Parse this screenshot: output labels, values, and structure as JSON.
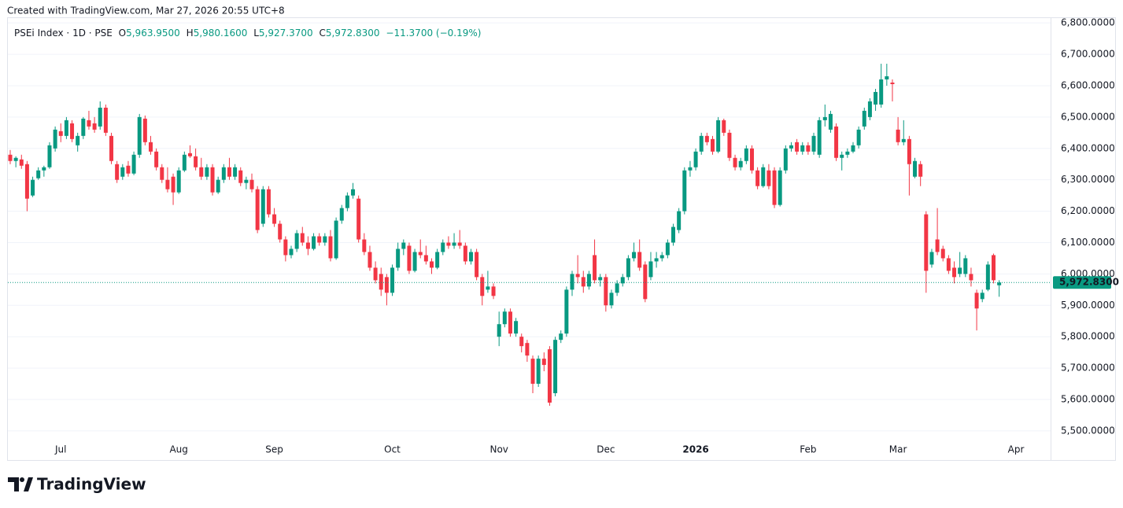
{
  "created": "Created with TradingView.com, Mar 27, 2026 20:55 UTC+8",
  "logo_text": "TradingView",
  "legend": {
    "symbol": "PSEi Index · 1D · PSE",
    "open_label": "O",
    "open": "5,963.9500",
    "high_label": "H",
    "high": "5,980.1600",
    "low_label": "L",
    "low": "5,927.3700",
    "close_label": "C",
    "close": "5,972.8300",
    "change": "−11.3700 (−0.19%)"
  },
  "chart_data": {
    "type": "candlestick",
    "up_color": "#089981",
    "down_color": "#f23645",
    "ylim": [
      5407,
      6818
    ],
    "yticks": [
      {
        "value": 5500,
        "label": "5,500.0000"
      },
      {
        "value": 5600,
        "label": "5,600.0000"
      },
      {
        "value": 5700,
        "label": "5,700.0000"
      },
      {
        "value": 5800,
        "label": "5,800.0000"
      },
      {
        "value": 5900,
        "label": "5,900.0000"
      },
      {
        "value": 6000,
        "label": "6,000.0000"
      },
      {
        "value": 6100,
        "label": "6,100.0000"
      },
      {
        "value": 6200,
        "label": "6,200.0000"
      },
      {
        "value": 6300,
        "label": "6,300.0000"
      },
      {
        "value": 6400,
        "label": "6,400.0000"
      },
      {
        "value": 6500,
        "label": "6,500.0000"
      },
      {
        "value": 6600,
        "label": "6,600.0000"
      },
      {
        "value": 6700,
        "label": "6,700.0000"
      },
      {
        "value": 6800,
        "label": "6,800.0000"
      }
    ],
    "grid": true,
    "last_price": {
      "value": 5972.83,
      "label": "5,972.8300"
    },
    "categories": [
      null,
      null,
      null,
      null,
      null,
      null,
      null,
      null,
      null,
      "Jul",
      null,
      null,
      null,
      null,
      null,
      null,
      null,
      null,
      null,
      null,
      null,
      null,
      null,
      null,
      null,
      null,
      null,
      null,
      null,
      null,
      "Aug",
      null,
      null,
      null,
      null,
      null,
      null,
      null,
      null,
      null,
      null,
      null,
      null,
      null,
      null,
      null,
      null,
      "Sep",
      null,
      null,
      null,
      null,
      null,
      null,
      null,
      null,
      null,
      null,
      null,
      null,
      null,
      null,
      null,
      null,
      null,
      null,
      null,
      null,
      "Oct",
      null,
      null,
      null,
      null,
      null,
      null,
      null,
      null,
      null,
      null,
      null,
      null,
      null,
      null,
      null,
      null,
      null,
      null,
      "Nov",
      null,
      null,
      null,
      null,
      null,
      null,
      null,
      null,
      null,
      null,
      null,
      null,
      null,
      null,
      null,
      null,
      null,
      null,
      "Dec",
      null,
      null,
      null,
      null,
      null,
      null,
      null,
      null,
      null,
      null,
      null,
      null,
      null,
      null,
      null,
      "2026",
      null,
      null,
      null,
      null,
      null,
      null,
      null,
      null,
      null,
      null,
      null,
      null,
      null,
      null,
      null,
      null,
      null,
      null,
      null,
      "Feb",
      null,
      null,
      null,
      null,
      null,
      null,
      null,
      null,
      null,
      null,
      null,
      null,
      null,
      null,
      null,
      "Mar",
      null,
      null,
      null,
      null,
      null,
      null,
      null,
      null,
      null,
      null,
      null,
      null,
      null,
      null,
      null,
      null,
      null,
      null,
      null,
      null,
      "Apr",
      null,
      null,
      null,
      null,
      null,
      null
    ],
    "ohlc": [
      [
        6380,
        6395,
        6350,
        6360
      ],
      [
        6360,
        6375,
        6340,
        6370
      ],
      [
        6365,
        6380,
        6335,
        6345
      ],
      [
        6350,
        6360,
        6200,
        6240
      ],
      [
        6250,
        6310,
        6245,
        6300
      ],
      [
        6305,
        6340,
        6300,
        6330
      ],
      [
        6330,
        6345,
        6310,
        6340
      ],
      [
        6340,
        6420,
        6335,
        6410
      ],
      [
        6400,
        6470,
        6390,
        6460
      ],
      [
        6455,
        6480,
        6420,
        6440
      ],
      [
        6440,
        6500,
        6430,
        6490
      ],
      [
        6480,
        6490,
        6420,
        6430
      ],
      [
        6410,
        6450,
        6390,
        6440
      ],
      [
        6440,
        6500,
        6430,
        6495
      ],
      [
        6490,
        6520,
        6460,
        6470
      ],
      [
        6480,
        6500,
        6450,
        6460
      ],
      [
        6470,
        6550,
        6460,
        6530
      ],
      [
        6530,
        6540,
        6440,
        6450
      ],
      [
        6440,
        6450,
        6350,
        6360
      ],
      [
        6350,
        6360,
        6290,
        6300
      ],
      [
        6310,
        6350,
        6300,
        6340
      ],
      [
        6345,
        6360,
        6310,
        6320
      ],
      [
        6320,
        6390,
        6315,
        6380
      ],
      [
        6380,
        6510,
        6370,
        6500
      ],
      [
        6495,
        6505,
        6410,
        6420
      ],
      [
        6420,
        6440,
        6380,
        6390
      ],
      [
        6390,
        6400,
        6330,
        6340
      ],
      [
        6340,
        6350,
        6290,
        6300
      ],
      [
        6300,
        6340,
        6260,
        6270
      ],
      [
        6310,
        6320,
        6220,
        6260
      ],
      [
        6260,
        6340,
        6255,
        6330
      ],
      [
        6330,
        6390,
        6325,
        6380
      ],
      [
        6385,
        6410,
        6370,
        6375
      ],
      [
        6375,
        6400,
        6330,
        6340
      ],
      [
        6340,
        6370,
        6300,
        6310
      ],
      [
        6310,
        6350,
        6300,
        6340
      ],
      [
        6340,
        6350,
        6250,
        6260
      ],
      [
        6260,
        6310,
        6255,
        6300
      ],
      [
        6300,
        6350,
        6290,
        6340
      ],
      [
        6340,
        6370,
        6300,
        6310
      ],
      [
        6310,
        6350,
        6300,
        6340
      ],
      [
        6330,
        6340,
        6280,
        6290
      ],
      [
        6290,
        6310,
        6270,
        6300
      ],
      [
        6300,
        6320,
        6260,
        6270
      ],
      [
        6270,
        6280,
        6130,
        6140
      ],
      [
        6160,
        6280,
        6150,
        6270
      ],
      [
        6270,
        6280,
        6180,
        6190
      ],
      [
        6190,
        6210,
        6150,
        6160
      ],
      [
        6160,
        6170,
        6100,
        6110
      ],
      [
        6110,
        6120,
        6040,
        6060
      ],
      [
        6060,
        6090,
        6050,
        6080
      ],
      [
        6080,
        6140,
        6070,
        6130
      ],
      [
        6130,
        6150,
        6090,
        6100
      ],
      [
        6100,
        6120,
        6060,
        6080
      ],
      [
        6080,
        6130,
        6075,
        6120
      ],
      [
        6120,
        6130,
        6090,
        6100
      ],
      [
        6100,
        6130,
        6090,
        6120
      ],
      [
        6120,
        6140,
        6040,
        6050
      ],
      [
        6050,
        6180,
        6045,
        6170
      ],
      [
        6170,
        6220,
        6160,
        6210
      ],
      [
        6210,
        6260,
        6200,
        6250
      ],
      [
        6250,
        6290,
        6240,
        6270
      ],
      [
        6240,
        6250,
        6100,
        6110
      ],
      [
        6110,
        6130,
        6060,
        6070
      ],
      [
        6070,
        6090,
        6010,
        6020
      ],
      [
        6020,
        6040,
        5970,
        5980
      ],
      [
        6000,
        6020,
        5930,
        5950
      ],
      [
        5990,
        6000,
        5900,
        5940
      ],
      [
        5940,
        6030,
        5930,
        6020
      ],
      [
        6020,
        6100,
        6010,
        6080
      ],
      [
        6080,
        6110,
        6060,
        6100
      ],
      [
        6090,
        6100,
        6000,
        6010
      ],
      [
        6010,
        6080,
        6005,
        6070
      ],
      [
        6070,
        6110,
        6050,
        6060
      ],
      [
        6060,
        6090,
        6030,
        6040
      ],
      [
        6040,
        6050,
        6000,
        6020
      ],
      [
        6020,
        6080,
        6015,
        6070
      ],
      [
        6070,
        6110,
        6060,
        6100
      ],
      [
        6100,
        6120,
        6080,
        6090
      ],
      [
        6090,
        6130,
        6080,
        6100
      ],
      [
        6100,
        6140,
        6080,
        6090
      ],
      [
        6090,
        6100,
        6030,
        6040
      ],
      [
        6040,
        6080,
        6030,
        6070
      ],
      [
        6070,
        6080,
        5980,
        5990
      ],
      [
        5990,
        6000,
        5900,
        5930
      ],
      [
        5950,
        6010,
        5940,
        5960
      ],
      [
        5960,
        5970,
        5920,
        5930
      ],
      [
        5800,
        5880,
        5770,
        5840
      ],
      [
        5840,
        5890,
        5830,
        5880
      ],
      [
        5880,
        5890,
        5800,
        5810
      ],
      [
        5810,
        5860,
        5800,
        5850
      ],
      [
        5800,
        5810,
        5750,
        5770
      ],
      [
        5780,
        5790,
        5720,
        5740
      ],
      [
        5730,
        5740,
        5620,
        5650
      ],
      [
        5650,
        5740,
        5640,
        5730
      ],
      [
        5730,
        5750,
        5690,
        5710
      ],
      [
        5760,
        5770,
        5580,
        5590
      ],
      [
        5620,
        5800,
        5610,
        5790
      ],
      [
        5790,
        5820,
        5780,
        5810
      ],
      [
        5810,
        5960,
        5800,
        5950
      ],
      [
        5950,
        6010,
        5930,
        6000
      ],
      [
        6000,
        6060,
        5970,
        5990
      ],
      [
        5990,
        6010,
        5940,
        5960
      ],
      [
        5960,
        6010,
        5950,
        6000
      ],
      [
        6060,
        6110,
        5970,
        5980
      ],
      [
        5980,
        6000,
        5960,
        5990
      ],
      [
        5990,
        6000,
        5880,
        5900
      ],
      [
        5900,
        5950,
        5890,
        5940
      ],
      [
        5940,
        5980,
        5930,
        5970
      ],
      [
        5970,
        6000,
        5960,
        5990
      ],
      [
        5990,
        6060,
        5980,
        6050
      ],
      [
        6050,
        6100,
        6040,
        6070
      ],
      [
        6070,
        6110,
        6010,
        6020
      ],
      [
        6030,
        6040,
        5910,
        5920
      ],
      [
        5990,
        6070,
        5980,
        6040
      ],
      [
        6040,
        6070,
        6020,
        6050
      ],
      [
        6050,
        6070,
        6040,
        6060
      ],
      [
        6060,
        6110,
        6050,
        6100
      ],
      [
        6100,
        6160,
        6090,
        6150
      ],
      [
        6140,
        6210,
        6130,
        6200
      ],
      [
        6200,
        6340,
        6190,
        6330
      ],
      [
        6330,
        6360,
        6310,
        6340
      ],
      [
        6340,
        6400,
        6330,
        6390
      ],
      [
        6390,
        6450,
        6380,
        6440
      ],
      [
        6440,
        6450,
        6410,
        6420
      ],
      [
        6430,
        6440,
        6380,
        6390
      ],
      [
        6390,
        6500,
        6385,
        6490
      ],
      [
        6490,
        6495,
        6440,
        6450
      ],
      [
        6450,
        6460,
        6360,
        6370
      ],
      [
        6370,
        6380,
        6330,
        6340
      ],
      [
        6340,
        6370,
        6330,
        6360
      ],
      [
        6360,
        6410,
        6350,
        6400
      ],
      [
        6400,
        6410,
        6320,
        6330
      ],
      [
        6330,
        6340,
        6270,
        6280
      ],
      [
        6280,
        6350,
        6275,
        6340
      ],
      [
        6330,
        6350,
        6270,
        6280
      ],
      [
        6330,
        6340,
        6210,
        6220
      ],
      [
        6220,
        6340,
        6215,
        6330
      ],
      [
        6330,
        6410,
        6320,
        6400
      ],
      [
        6400,
        6420,
        6390,
        6410
      ],
      [
        6420,
        6430,
        6380,
        6390
      ],
      [
        6390,
        6420,
        6380,
        6410
      ],
      [
        6410,
        6420,
        6380,
        6390
      ],
      [
        6390,
        6450,
        6380,
        6440
      ],
      [
        6380,
        6500,
        6370,
        6490
      ],
      [
        6490,
        6540,
        6470,
        6500
      ],
      [
        6460,
        6520,
        6450,
        6510
      ],
      [
        6470,
        6480,
        6360,
        6370
      ],
      [
        6370,
        6390,
        6330,
        6380
      ],
      [
        6380,
        6400,
        6370,
        6390
      ],
      [
        6390,
        6420,
        6385,
        6410
      ],
      [
        6410,
        6470,
        6400,
        6460
      ],
      [
        6470,
        6530,
        6460,
        6520
      ],
      [
        6500,
        6560,
        6490,
        6550
      ],
      [
        6540,
        6590,
        6520,
        6580
      ],
      [
        6540,
        6670,
        6530,
        6620
      ],
      [
        6620,
        6670,
        6600,
        6630
      ],
      [
        6610,
        6620,
        6550,
        6605
      ],
      [
        6460,
        6500,
        6410,
        6420
      ],
      [
        6420,
        6490,
        6410,
        6430
      ],
      [
        6430,
        6440,
        6250,
        6350
      ],
      [
        6310,
        6370,
        6305,
        6360
      ],
      [
        6350,
        6360,
        6280,
        6310
      ],
      [
        6190,
        6200,
        5940,
        6010
      ],
      [
        6030,
        6080,
        6020,
        6070
      ],
      [
        6110,
        6210,
        6060,
        6070
      ],
      [
        6080,
        6090,
        6040,
        6050
      ],
      [
        6050,
        6060,
        6000,
        6010
      ],
      [
        6020,
        6040,
        5970,
        5990
      ],
      [
        6000,
        6070,
        5990,
        6020
      ],
      [
        6000,
        6060,
        5990,
        6050
      ],
      [
        6000,
        6020,
        5960,
        5980
      ],
      [
        5940,
        5950,
        5820,
        5890
      ],
      [
        5920,
        5950,
        5910,
        5940
      ],
      [
        5950,
        6040,
        5945,
        6030
      ],
      [
        6060,
        6065,
        5970,
        5980
      ],
      [
        5963.95,
        5980.16,
        5927.37,
        5972.83
      ],
      null,
      null,
      null,
      null,
      null,
      null,
      null,
      null,
      null
    ]
  }
}
